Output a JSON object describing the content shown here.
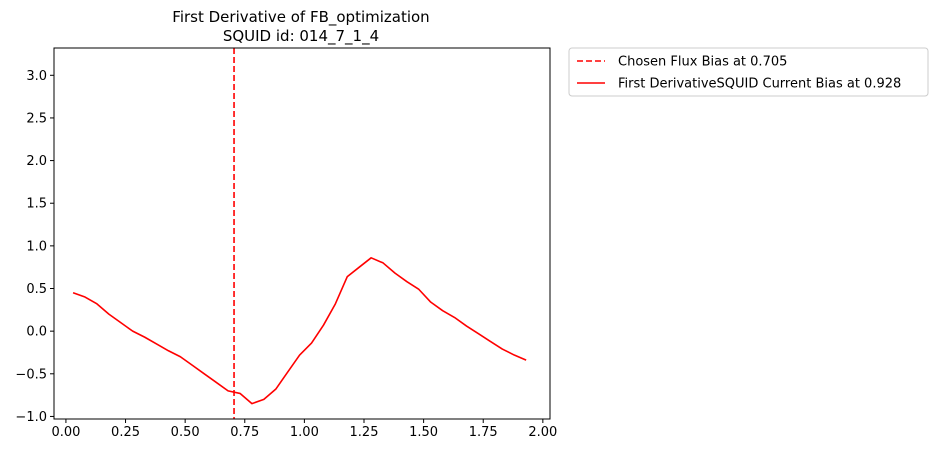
{
  "chart_data": {
    "type": "line",
    "title": "First Derivative of FB_optimization",
    "subtitle": "SQUID id: 014_7_1_4",
    "xlabel": "",
    "ylabel": "",
    "xlim": [
      -0.05,
      2.03
    ],
    "ylim": [
      -1.03,
      3.32
    ],
    "xticks": [
      0.0,
      0.25,
      0.5,
      0.75,
      1.0,
      1.25,
      1.5,
      1.75,
      2.0
    ],
    "xtick_labels": [
      "0.00",
      "0.25",
      "0.50",
      "0.75",
      "1.00",
      "1.25",
      "1.50",
      "1.75",
      "2.00"
    ],
    "yticks": [
      -1.0,
      -0.5,
      0.0,
      0.5,
      1.0,
      1.5,
      2.0,
      2.5,
      3.0
    ],
    "ytick_labels": [
      "−1.0",
      "−0.5",
      "0.0",
      "0.5",
      "1.0",
      "1.5",
      "2.0",
      "2.5",
      "3.0"
    ],
    "grid": false,
    "legend_placement": "outside-upper-right",
    "vline": {
      "name": "Chosen Flux Bias at 0.705",
      "x": 0.705,
      "color": "#ff0000",
      "style": "dashed"
    },
    "series": [
      {
        "name": "First DerivativeSQUID Current Bias at 0.928",
        "color": "#ff0000",
        "x": [
          0.03,
          0.08,
          0.13,
          0.18,
          0.23,
          0.28,
          0.33,
          0.38,
          0.43,
          0.48,
          0.53,
          0.58,
          0.63,
          0.68,
          0.73,
          0.78,
          0.83,
          0.88,
          0.93,
          0.98,
          1.03,
          1.08,
          1.13,
          1.18,
          1.23,
          1.28,
          1.33,
          1.38,
          1.43,
          1.48,
          1.53,
          1.58,
          1.63,
          1.68,
          1.73,
          1.78,
          1.83,
          1.88,
          1.93
        ],
        "y": [
          0.45,
          0.4,
          0.32,
          0.2,
          0.1,
          0.0,
          -0.07,
          -0.15,
          -0.23,
          -0.3,
          -0.4,
          -0.5,
          -0.6,
          -0.7,
          -0.73,
          -0.85,
          -0.8,
          -0.68,
          -0.48,
          -0.28,
          -0.14,
          0.07,
          0.32,
          0.64,
          0.75,
          0.86,
          0.8,
          0.68,
          0.58,
          0.49,
          0.34,
          0.24,
          0.16,
          0.06,
          -0.03,
          -0.12,
          -0.21,
          -0.28,
          -0.34
        ]
      }
    ]
  }
}
